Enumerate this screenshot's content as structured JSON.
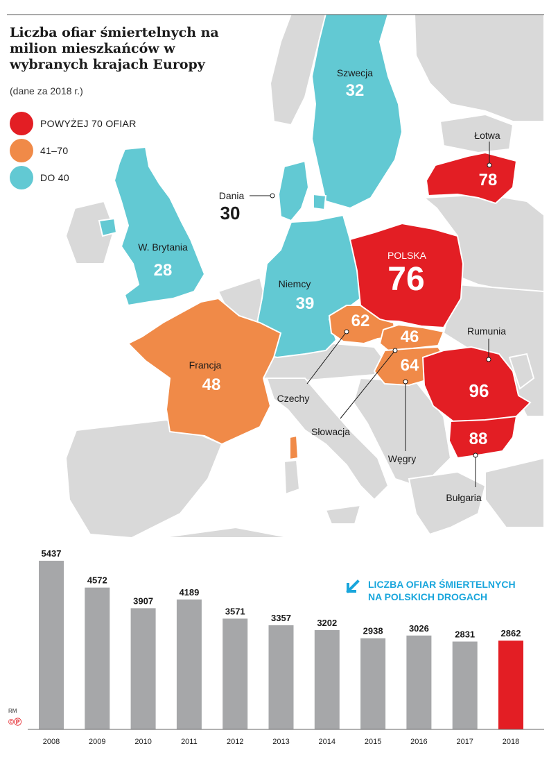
{
  "title": "Liczba ofiar śmiertelnych na milion mieszkańców w wybranych krajach Europy",
  "subtitle": "(dane za 2018 r.)",
  "colors": {
    "red": "#e31e24",
    "orange": "#f08a48",
    "teal": "#62c9d3",
    "land": "#d9d9d9",
    "sea": "#ffffff",
    "bar": "#a6a7a9",
    "bar_highlight": "#e31e24",
    "accent_blue": "#19a6dc"
  },
  "legend": [
    {
      "label": "POWYŻEJ 70 OFIAR",
      "color": "#e31e24"
    },
    {
      "label": "41–70",
      "color": "#f08a48"
    },
    {
      "label": "DO 40",
      "color": "#62c9d3"
    }
  ],
  "map": {
    "countries": [
      {
        "id": "szwecja",
        "name": "Szwecja",
        "value": "32",
        "category": "DO 40"
      },
      {
        "id": "lotwa",
        "name": "Łotwa",
        "value": "78",
        "category": "POWYŻEJ 70 OFIAR"
      },
      {
        "id": "dania",
        "name": "Dania",
        "value": "30",
        "category": "DO 40"
      },
      {
        "id": "wielka-brytania",
        "name": "W. Brytania",
        "value": "28",
        "category": "DO 40"
      },
      {
        "id": "niemcy",
        "name": "Niemcy",
        "value": "39",
        "category": "DO 40"
      },
      {
        "id": "polska",
        "name": "POLSKA",
        "value": "76",
        "category": "POWYŻEJ 70 OFIAR"
      },
      {
        "id": "czechy",
        "name": "Czechy",
        "value": "62",
        "category": "41–70"
      },
      {
        "id": "slowacja",
        "name": "Słowacja",
        "value": "46",
        "category": "41–70"
      },
      {
        "id": "wegry",
        "name": "Węgry",
        "value": "64",
        "category": "41–70"
      },
      {
        "id": "francja",
        "name": "Francja",
        "value": "48",
        "category": "41–70"
      },
      {
        "id": "rumunia",
        "name": "Rumunia",
        "value": "96",
        "category": "POWYŻEJ 70 OFIAR"
      },
      {
        "id": "bulgaria",
        "name": "Bułgaria",
        "value": "88",
        "category": "POWYŻEJ 70 OFIAR"
      }
    ]
  },
  "chart_data": {
    "type": "bar",
    "title": "LICZBA OFIAR ŚMIERTELNYCH NA POLSKICH DROGACH",
    "categories": [
      "2008",
      "2009",
      "2010",
      "2011",
      "2012",
      "2013",
      "2014",
      "2015",
      "2016",
      "2017",
      "2018"
    ],
    "values": [
      5437,
      4572,
      3907,
      4189,
      3571,
      3357,
      3202,
      2938,
      3026,
      2831,
      2862
    ],
    "highlight": "2018",
    "ylim": [
      0,
      5437
    ],
    "grid": false,
    "xlabel": "",
    "ylabel": ""
  },
  "credits": {
    "author": "RM",
    "copyright": "©Ⓟ"
  }
}
